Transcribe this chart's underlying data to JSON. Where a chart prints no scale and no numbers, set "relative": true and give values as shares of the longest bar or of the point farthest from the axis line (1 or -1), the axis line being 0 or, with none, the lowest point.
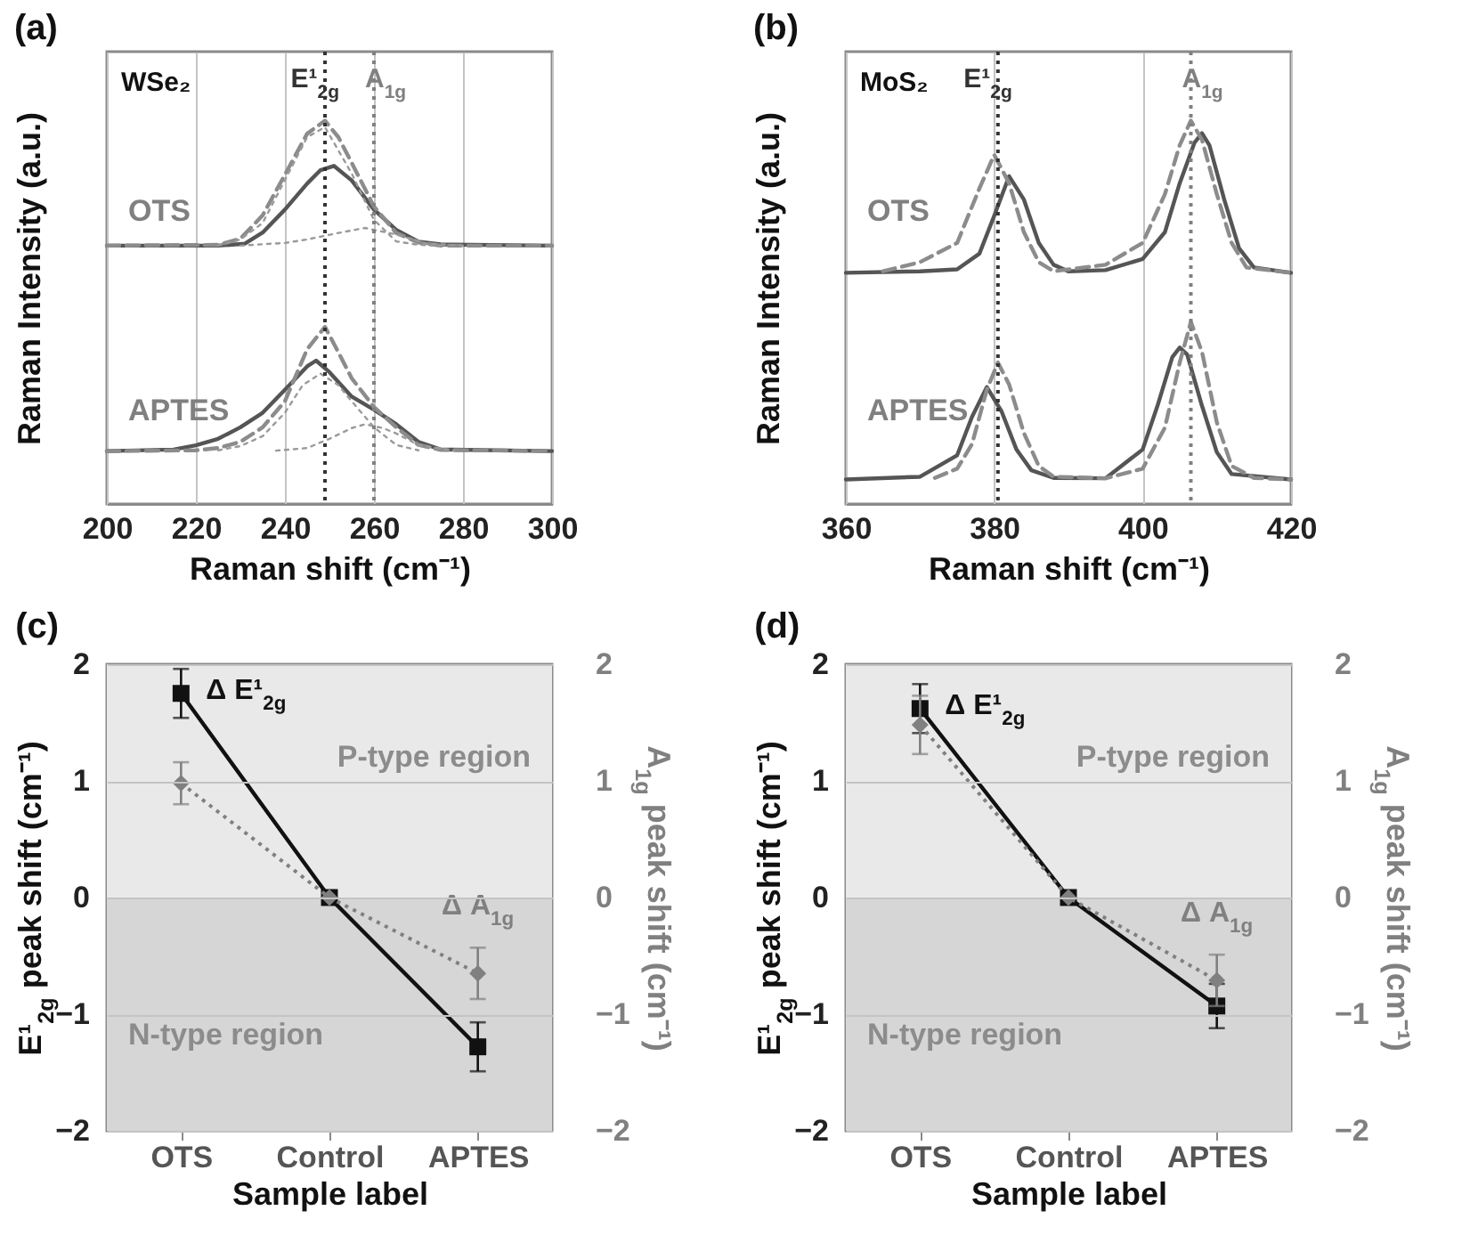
{
  "chart_data": [
    {
      "type": "line",
      "title": "(a)",
      "relative": true,
      "xlabel": "Raman shift (cm⁻¹)",
      "ylabel": "Raman Intensity (a.u.)",
      "xlim": [
        200,
        300
      ],
      "xticks": [
        200,
        220,
        240,
        260,
        280,
        300
      ],
      "grid": "x",
      "annotations": [
        "WSe₂",
        "OTS",
        "APTES"
      ],
      "ref_lines": [
        {
          "axis": "x",
          "value": 249,
          "label": "E¹$_{2g}$",
          "color": "#333333",
          "line_style": "dotted"
        },
        {
          "axis": "x",
          "value": 260,
          "label": "A$_{1g}$",
          "color": "#808080",
          "line_style": "dotted"
        }
      ],
      "series": [
        {
          "color": "#555555",
          "line_style": "solid",
          "x": [
            200,
            225,
            231,
            235,
            240,
            245,
            248,
            251,
            255,
            260,
            265,
            270,
            275,
            300
          ],
          "values": [
            0.674,
            0.674,
            0.679,
            0.708,
            0.768,
            0.836,
            0.871,
            0.882,
            0.844,
            0.768,
            0.715,
            0.684,
            0.677,
            0.674
          ]
        },
        {
          "color": "#8c8c8c",
          "line_style": "dashed",
          "x": [
            200,
            225,
            230,
            235,
            240,
            245,
            249,
            252,
            255,
            260,
            265,
            270,
            275,
            300
          ],
          "values": [
            0.674,
            0.676,
            0.692,
            0.753,
            0.859,
            0.966,
            1.0,
            0.957,
            0.89,
            0.776,
            0.707,
            0.682,
            0.674,
            0.674
          ]
        },
        {
          "color": "#9a9a9a",
          "line_style": "dotted",
          "x": [
            225,
            230,
            235,
            240,
            245,
            249,
            255,
            260,
            265,
            270,
            275
          ],
          "values": [
            0.674,
            0.69,
            0.733,
            0.845,
            0.957,
            0.983,
            0.862,
            0.741,
            0.685,
            0.676,
            0.674
          ]
        },
        {
          "color": "#9a9a9a",
          "line_style": "dotted",
          "x": [
            230,
            240,
            245,
            252,
            258,
            265,
            272,
            280
          ],
          "values": [
            0.674,
            0.681,
            0.69,
            0.707,
            0.72,
            0.703,
            0.679,
            0.674
          ]
        },
        {
          "color": "#555555",
          "line_style": "solid",
          "x": [
            200,
            215,
            220,
            225,
            230,
            235,
            240,
            245,
            247,
            250,
            255,
            260,
            265,
            270,
            275,
            300
          ],
          "values": [
            0.138,
            0.142,
            0.153,
            0.17,
            0.2,
            0.238,
            0.298,
            0.359,
            0.374,
            0.344,
            0.28,
            0.246,
            0.208,
            0.162,
            0.142,
            0.138
          ]
        },
        {
          "color": "#8c8c8c",
          "line_style": "dashed",
          "x": [
            200,
            220,
            225,
            230,
            235,
            240,
            245,
            249,
            252,
            255,
            260,
            265,
            270,
            275,
            300
          ],
          "values": [
            0.138,
            0.14,
            0.146,
            0.162,
            0.2,
            0.268,
            0.404,
            0.462,
            0.396,
            0.328,
            0.253,
            0.2,
            0.154,
            0.141,
            0.138
          ]
        },
        {
          "color": "#9a9a9a",
          "line_style": "dotted",
          "x": [
            225,
            230,
            235,
            240,
            244,
            248,
            252,
            255,
            260,
            265,
            270
          ],
          "values": [
            0.14,
            0.151,
            0.177,
            0.238,
            0.31,
            0.34,
            0.31,
            0.268,
            0.2,
            0.154,
            0.14
          ]
        },
        {
          "color": "#9a9a9a",
          "line_style": "dotted",
          "x": [
            238,
            245,
            250,
            255,
            258,
            262,
            265,
            270,
            278
          ],
          "values": [
            0.139,
            0.146,
            0.17,
            0.198,
            0.208,
            0.198,
            0.184,
            0.154,
            0.139
          ]
        }
      ]
    },
    {
      "type": "line",
      "title": "(b)",
      "relative": true,
      "xlabel": "Raman shift (cm⁻¹)",
      "ylabel": "Raman Intensity (a.u.)",
      "xlim": [
        360,
        420
      ],
      "xticks": [
        360,
        380,
        400,
        420
      ],
      "grid": "x",
      "annotations": [
        "MoS₂",
        "OTS",
        "APTES"
      ],
      "ref_lines": [
        {
          "axis": "x",
          "value": 380.5,
          "label": "E¹$_{2g}$",
          "color": "#333333",
          "line_style": "dotted"
        },
        {
          "axis": "x",
          "value": 406.5,
          "label": "A$_{1g}$",
          "color": "#808080",
          "line_style": "dotted"
        }
      ],
      "series": [
        {
          "color": "#555555",
          "line_style": "solid",
          "x": [
            360,
            370,
            375,
            378,
            380,
            382,
            384,
            386,
            388,
            390,
            395,
            400,
            403,
            405,
            407,
            408,
            409,
            411,
            413,
            415,
            420
          ],
          "values": [
            0.603,
            0.607,
            0.612,
            0.653,
            0.752,
            0.855,
            0.794,
            0.681,
            0.624,
            0.607,
            0.61,
            0.639,
            0.709,
            0.837,
            0.943,
            0.967,
            0.936,
            0.794,
            0.667,
            0.617,
            0.603
          ]
        },
        {
          "color": "#8c8c8c",
          "line_style": "dashed",
          "x": [
            365,
            370,
            375,
            378,
            380,
            382,
            384,
            386,
            388,
            395,
            400,
            403,
            405,
            406.5,
            408,
            410,
            412,
            414,
            420
          ],
          "values": [
            0.607,
            0.631,
            0.681,
            0.823,
            0.911,
            0.837,
            0.709,
            0.631,
            0.607,
            0.624,
            0.681,
            0.808,
            0.936,
            1.0,
            0.95,
            0.808,
            0.681,
            0.617,
            0.603
          ]
        },
        {
          "color": "#555555",
          "line_style": "solid",
          "x": [
            360,
            370,
            375,
            377,
            379,
            381,
            383,
            385,
            388,
            395,
            400,
            402,
            404,
            405,
            406,
            408,
            410,
            412,
            420
          ],
          "values": [
            0.064,
            0.071,
            0.127,
            0.227,
            0.305,
            0.241,
            0.142,
            0.088,
            0.068,
            0.067,
            0.142,
            0.256,
            0.383,
            0.408,
            0.39,
            0.256,
            0.135,
            0.078,
            0.064
          ]
        },
        {
          "color": "#8c8c8c",
          "line_style": "dashed",
          "x": [
            372,
            375,
            377,
            379,
            380.5,
            382,
            384,
            386,
            388,
            395,
            400,
            403,
            405,
            406.5,
            408,
            410,
            412,
            415,
            420
          ],
          "values": [
            0.068,
            0.092,
            0.156,
            0.298,
            0.369,
            0.312,
            0.185,
            0.099,
            0.071,
            0.067,
            0.092,
            0.199,
            0.369,
            0.475,
            0.397,
            0.213,
            0.099,
            0.068,
            0.064
          ]
        }
      ]
    },
    {
      "type": "line",
      "title": "(c)",
      "categories": [
        "OTS",
        "Control",
        "APTES"
      ],
      "xlabel": "Sample label",
      "ylabel": "E¹$_{2g}$ peak shift (cm⁻¹)",
      "y2label": "A$_{1g}$ peak shift (cm⁻¹)",
      "ylim": [
        -2,
        2
      ],
      "yticks": [
        -2,
        -1,
        0,
        1,
        2
      ],
      "y2lim": [
        -2,
        2
      ],
      "y2ticks": [
        -2,
        -1,
        0,
        1,
        2
      ],
      "grid": "y",
      "bands": [
        {
          "axis": "y",
          "from": 0,
          "to": 2,
          "label": "P-type region",
          "color": "#e9e9e9"
        },
        {
          "axis": "y",
          "from": -2,
          "to": 0,
          "label": "N-type region",
          "color": "#d6d6d6"
        }
      ],
      "series": [
        {
          "name": "Δ E¹$_{2g}$",
          "color": "#111111",
          "marker": "square",
          "line_style": "solid",
          "values": [
            1.75,
            0,
            -1.28
          ],
          "errors": [
            0.21,
            null,
            0.21
          ]
        },
        {
          "name": "Δ A$_{1g}$",
          "color": "#808080",
          "axis": "y2",
          "marker": "diamond",
          "line_style": "dotted",
          "values": [
            0.98,
            0,
            -0.65
          ],
          "errors": [
            0.18,
            null,
            0.22
          ]
        }
      ]
    },
    {
      "type": "line",
      "title": "(d)",
      "categories": [
        "OTS",
        "Control",
        "APTES"
      ],
      "xlabel": "Sample label",
      "ylabel": "E¹$_{2g}$ peak shift (cm⁻¹)",
      "y2label": "A$_{1g}$ peak shift (cm⁻¹)",
      "ylim": [
        -2,
        2
      ],
      "yticks": [
        -2,
        -1,
        0,
        1,
        2
      ],
      "y2lim": [
        -2,
        2
      ],
      "y2ticks": [
        -2,
        -1,
        0,
        1,
        2
      ],
      "grid": "y",
      "bands": [
        {
          "axis": "y",
          "from": 0,
          "to": 2,
          "label": "P-type region",
          "color": "#e9e9e9"
        },
        {
          "axis": "y",
          "from": -2,
          "to": 0,
          "label": "N-type region",
          "color": "#d6d6d6"
        }
      ],
      "series": [
        {
          "name": "Δ E¹$_{2g}$",
          "color": "#111111",
          "marker": "square",
          "line_style": "solid",
          "values": [
            1.62,
            0,
            -0.93
          ],
          "errors": [
            0.21,
            null,
            0.19
          ]
        },
        {
          "name": "Δ A$_{1g}$",
          "color": "#808080",
          "axis": "y2",
          "marker": "diamond",
          "line_style": "dotted",
          "values": [
            1.48,
            0,
            -0.71
          ],
          "errors": [
            0.25,
            null,
            0.22
          ]
        }
      ]
    }
  ]
}
